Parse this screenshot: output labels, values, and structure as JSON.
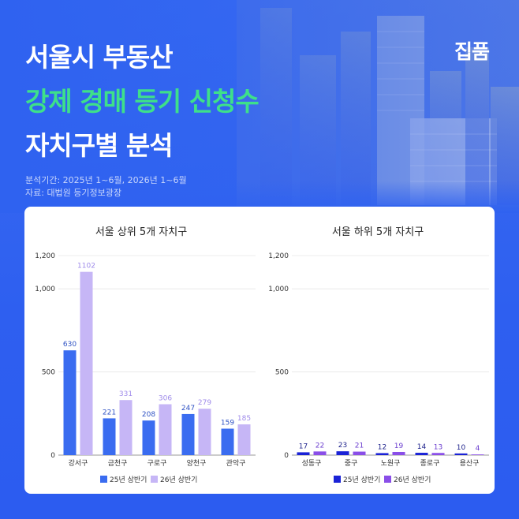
{
  "header": {
    "title_line1": "서울시 부동산",
    "title_line2": "강제 경매 등기 신청수",
    "title_line3": "자치구별 분석",
    "brand": "집품",
    "period": "분석기간: 2025년 1~6월, 2026년 1~6월",
    "source": "자료: 대법원 등기정보광장"
  },
  "colors": {
    "background": "#2f62f0",
    "highlight": "#3ee08a",
    "left_series_1": "#3a6cf0",
    "left_series_2": "#c6b6f6",
    "right_series_1": "#1a22d6",
    "right_series_2": "#8a4ee8"
  },
  "chart_data": [
    {
      "type": "bar",
      "title": "서울 상위 5개 자치구",
      "categories": [
        "강서구",
        "금천구",
        "구로구",
        "양천구",
        "관악구"
      ],
      "series": [
        {
          "name": "25년 상반기",
          "values": [
            630,
            221,
            208,
            247,
            159
          ]
        },
        {
          "name": "26년 상반기",
          "values": [
            1102,
            331,
            306,
            279,
            185
          ]
        }
      ],
      "yticks": [
        "0",
        "500",
        "1,000",
        "1,200"
      ],
      "ytick_values": [
        0,
        500,
        1000,
        1200
      ],
      "ylim": [
        0,
        1200
      ],
      "grid": true,
      "legend": "bottom"
    },
    {
      "type": "bar",
      "title": "서울 하위 5개 자치구",
      "categories": [
        "성동구",
        "중구",
        "노원구",
        "종로구",
        "용산구"
      ],
      "series": [
        {
          "name": "25년 상반기",
          "values": [
            17,
            23,
            12,
            14,
            10
          ]
        },
        {
          "name": "26년 상반기",
          "values": [
            22,
            21,
            19,
            13,
            4
          ]
        }
      ],
      "yticks": [
        "0",
        "500",
        "1,000",
        "1,200"
      ],
      "ytick_values": [
        0,
        500,
        1000,
        1200
      ],
      "ylim": [
        0,
        1200
      ],
      "grid": true,
      "legend": "bottom"
    }
  ]
}
